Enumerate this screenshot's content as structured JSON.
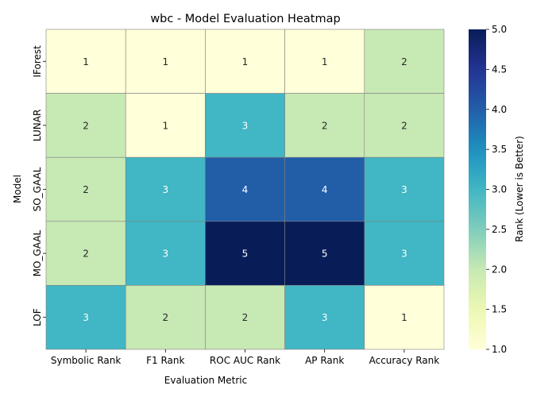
{
  "chart_data": {
    "type": "heatmap",
    "title": "wbc - Model Evaluation Heatmap",
    "xlabel": "Evaluation Metric",
    "ylabel": "Model",
    "columns": [
      "Symbolic Rank",
      "F1 Rank",
      "ROC AUC Rank",
      "AP Rank",
      "Accuracy Rank"
    ],
    "rows": [
      "IForest",
      "LUNAR",
      "SO_GAAL",
      "MO_GAAL",
      "LOF"
    ],
    "values": [
      [
        1,
        1,
        1,
        1,
        2
      ],
      [
        2,
        1,
        3,
        2,
        2
      ],
      [
        2,
        3,
        4,
        4,
        3
      ],
      [
        2,
        3,
        5,
        5,
        3
      ],
      [
        3,
        2,
        2,
        3,
        1
      ]
    ],
    "colorbar": {
      "label": "Rank (Lower is Better)",
      "range": [
        1.0,
        5.0
      ],
      "ticks": [
        "1.0",
        "1.5",
        "2.0",
        "2.5",
        "3.0",
        "3.5",
        "4.0",
        "4.5",
        "5.0"
      ],
      "colormap": "YlGnBu"
    },
    "grid": true
  }
}
